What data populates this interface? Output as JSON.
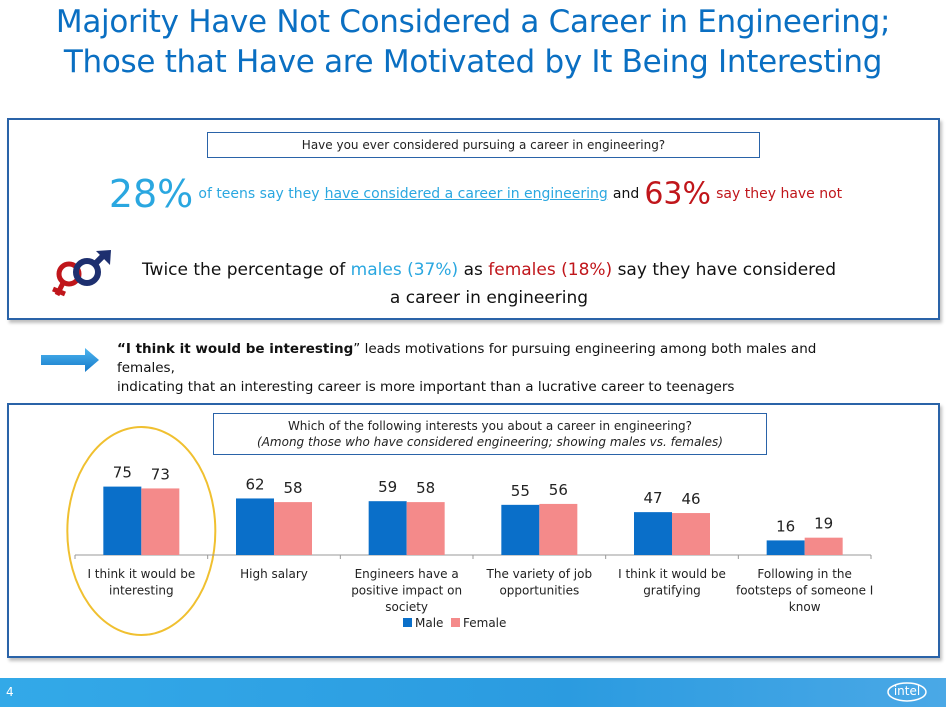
{
  "title": {
    "line1": "Majority Have Not Considered a Career in Engineering;",
    "line2": "Those that Have are Motivated by It Being Interesting"
  },
  "panel1": {
    "question": "Have you ever considered pursuing a career in engineering?",
    "pct_considered": "28%",
    "text_a": "of teens say they",
    "text_link": "have considered a career in engineering",
    "text_and": "and",
    "pct_not": "63%",
    "text_not": "say they have not",
    "twice_pre": "Twice the percentage of",
    "males": "males (37%)",
    "twice_as": "as",
    "females": "females (18%)",
    "twice_post": "say they have considered",
    "twice_line2": "a career in engineering",
    "icon": "gender-symbols-icon"
  },
  "motivation": {
    "quote": "“I think it would be interesting",
    "quote_end": "”",
    "rest1": " leads motivations for pursuing engineering among both males and females,",
    "rest2": "indicating that an interesting career is more important than a lucrative career to teenagers",
    "icon": "right-arrow-icon"
  },
  "panel2": {
    "question": "Which of the following interests you about a career in engineering?",
    "subquestion": "(Among those who have considered engineering; showing males vs. females)"
  },
  "chart_data": {
    "type": "bar",
    "title": "Which of the following interests you about a career in engineering?",
    "categories": [
      [
        "I think it would be",
        "interesting"
      ],
      [
        "High salary"
      ],
      [
        "Engineers have a",
        "positive impact on",
        "society"
      ],
      [
        "The variety of job",
        "opportunities"
      ],
      [
        "I think it would be",
        "gratifying"
      ],
      [
        "Following in the",
        "footsteps of someone I",
        "know"
      ]
    ],
    "series": [
      {
        "name": "Male",
        "color": "#0a6fc9",
        "values": [
          75,
          62,
          59,
          55,
          47,
          16
        ]
      },
      {
        "name": "Female",
        "color": "#f48a8a",
        "values": [
          73,
          58,
          58,
          56,
          46,
          19
        ]
      }
    ],
    "ylim": [
      0,
      100
    ],
    "legend": "bottom-center",
    "highlight_category": 0,
    "highlight_color": "#f0c030"
  },
  "footer": {
    "page_number": "4",
    "logo": "intel"
  },
  "colors": {
    "title": "#0a6fc2",
    "accent_blue": "#2aa7e0",
    "accent_red": "#c0161b",
    "border": "#2a63a8",
    "footer": "#2b9be0"
  }
}
